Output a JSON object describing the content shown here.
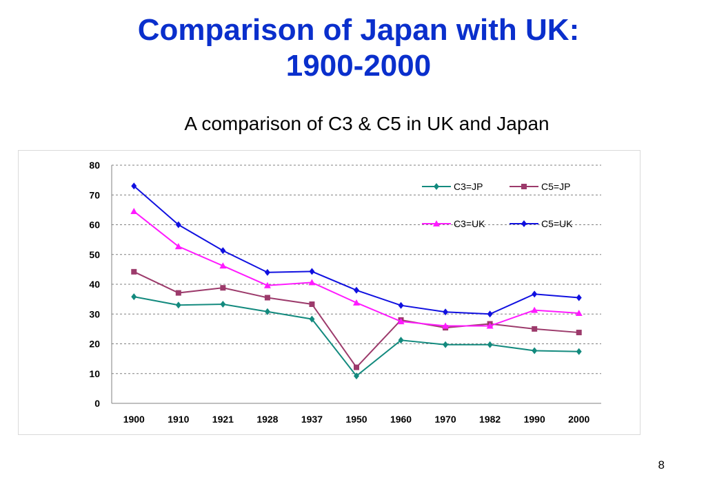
{
  "slide": {
    "title_line1": "Comparison of Japan with UK:",
    "title_line2": "1900-2000",
    "page_number": "8"
  },
  "chart_data": {
    "type": "line",
    "title": "A comparison of C3 & C5 in UK and Japan",
    "xlabel": "",
    "ylabel": "",
    "categories": [
      "1900",
      "1910",
      "1921",
      "1928",
      "1937",
      "1950",
      "1960",
      "1970",
      "1982",
      "1990",
      "2000"
    ],
    "ylim": [
      0,
      80
    ],
    "yticks": [
      0,
      10,
      20,
      30,
      40,
      50,
      60,
      70,
      80
    ],
    "grid": true,
    "legend_position": "top-right",
    "series": [
      {
        "name": "C3=JP",
        "color": "#138a7e",
        "marker": "diamond",
        "values": [
          35.8,
          33,
          33.3,
          30.8,
          28.3,
          9.2,
          21.2,
          19.7,
          19.7,
          17.7,
          17.4
        ]
      },
      {
        "name": "C5=JP",
        "color": "#9c3a6b",
        "marker": "square",
        "values": [
          44.2,
          37.1,
          38.8,
          35.5,
          33.3,
          12.1,
          28,
          25.4,
          26.7,
          25,
          23.8
        ]
      },
      {
        "name": "C3=UK",
        "color": "#ff1aff",
        "marker": "triangle",
        "values": [
          64.5,
          52.7,
          46.2,
          39.6,
          40.6,
          33.8,
          27.5,
          26,
          26,
          31.3,
          30.3
        ]
      },
      {
        "name": "C5=UK",
        "color": "#1010e0",
        "marker": "diamond",
        "values": [
          73,
          60,
          51.3,
          44,
          44.3,
          38,
          32.9,
          30.7,
          30,
          36.7,
          35.5
        ]
      }
    ]
  }
}
